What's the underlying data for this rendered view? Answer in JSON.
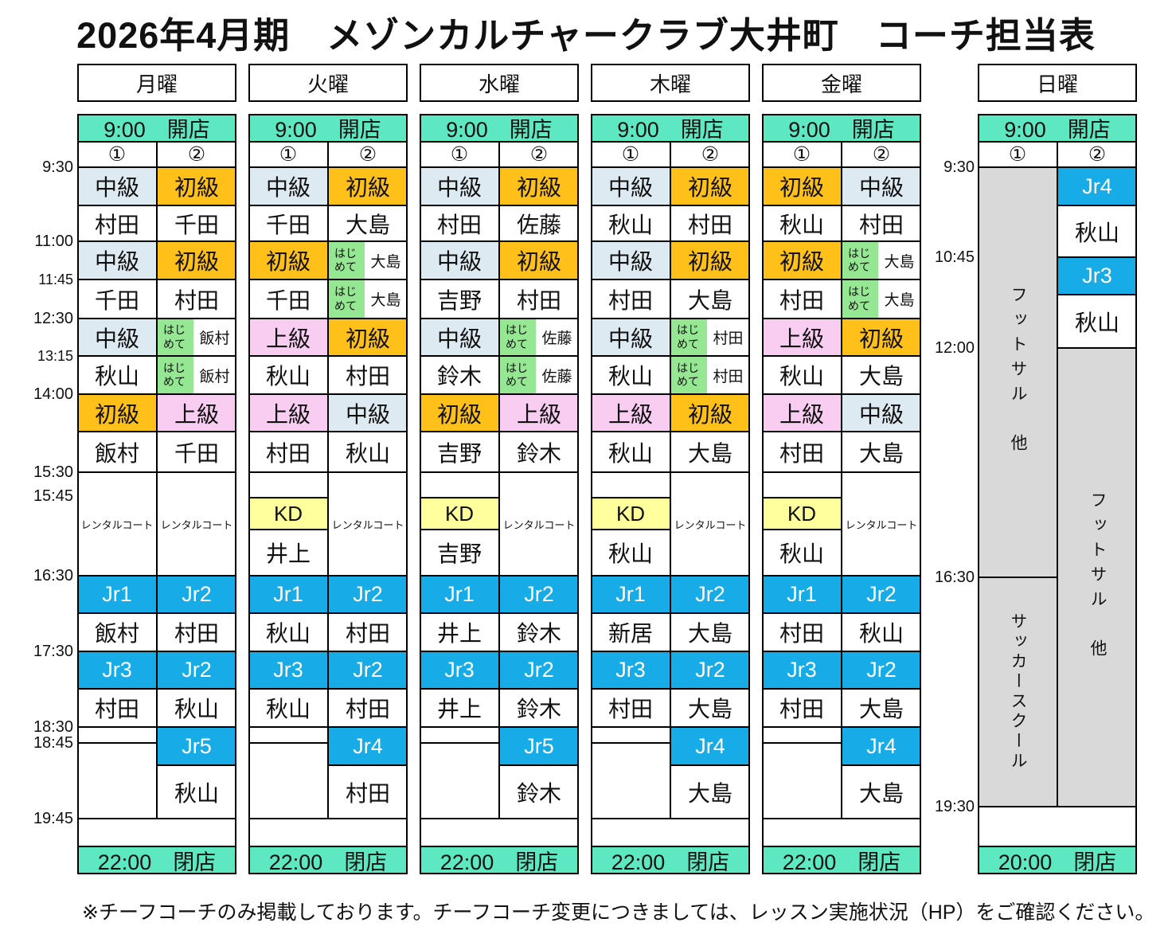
{
  "title": "2026年4月期　メゾンカルチャークラブ大井町　コーチ担当表",
  "footer_note": "※チーフコーチのみ掲載しております。チーフコーチ変更につきましては、レッスン実施状況（HP）をご確認ください。",
  "court_labels": [
    "①",
    "②"
  ],
  "kd_label": "KD",
  "rental_label": "レンタルコート",
  "hajimete_label": "はじめて",
  "left_times": [
    "9:30",
    "11:00",
    "11:45",
    "12:30",
    "13:15",
    "14:00",
    "15:30",
    "15:45",
    "16:30",
    "17:30",
    "18:30",
    "18:45",
    "19:45"
  ],
  "right_times": [
    "9:30",
    "10:45",
    "12:00",
    "16:30",
    "19:30"
  ],
  "colors": {
    "open_close": "#5EE8C2",
    "beginner": "#FFC019",
    "intermediate": "#DEEAF1",
    "advanced": "#F8CDF1",
    "first_time": "#95E793",
    "kd": "#FFFF9C",
    "junior": "#17ACE8",
    "sunday_gray": "#D9D9D9"
  },
  "level_color_keys": {
    "初級": "beginner",
    "中級": "intermediate",
    "上級": "advanced"
  },
  "days": [
    {
      "name": "月曜",
      "open": "9:00　開店",
      "close": "22:00　閉店",
      "cols": [
        {
          "lessons": [
            {
              "level": "中級",
              "coach": "村田"
            },
            {
              "level": "中級",
              "coach": "千田"
            },
            {
              "level": "中級",
              "coach": "秋山"
            },
            {
              "level": "初級",
              "coach": "飯村"
            }
          ],
          "mid": {
            "type": "rental"
          },
          "jr": [
            {
              "level": "Jr1",
              "coach": "飯村"
            },
            {
              "level": "Jr3",
              "coach": "村田"
            }
          ],
          "late": {
            "type": "empty"
          }
        },
        {
          "lessons": [
            {
              "level": "初級",
              "coach": "千田"
            },
            {
              "level": "初級",
              "coach": "村田"
            },
            {
              "type": "hajimete_pair",
              "coach1": "飯村",
              "coach2": "飯村"
            },
            {
              "level": "上級",
              "coach": "千田"
            }
          ],
          "mid": {
            "type": "rental"
          },
          "jr": [
            {
              "level": "Jr2",
              "coach": "村田"
            },
            {
              "level": "Jr2",
              "coach": "秋山"
            }
          ],
          "late": {
            "type": "jr",
            "level": "Jr5",
            "coach": "秋山"
          }
        }
      ]
    },
    {
      "name": "火曜",
      "open": "9:00　開店",
      "close": "22:00　閉店",
      "cols": [
        {
          "lessons": [
            {
              "level": "中級",
              "coach": "千田"
            },
            {
              "level": "初級",
              "coach": "千田"
            },
            {
              "level": "上級",
              "coach": "秋山"
            },
            {
              "level": "上級",
              "coach": "村田"
            }
          ],
          "mid": {
            "type": "kd",
            "coach": "井上"
          },
          "jr": [
            {
              "level": "Jr1",
              "coach": "秋山"
            },
            {
              "level": "Jr3",
              "coach": "秋山"
            }
          ],
          "late": {
            "type": "empty"
          }
        },
        {
          "lessons": [
            {
              "level": "初級",
              "coach": "大島"
            },
            {
              "type": "hajimete_pair",
              "coach1": "大島",
              "coach2": "大島"
            },
            {
              "level": "初級",
              "coach": "村田"
            },
            {
              "level": "中級",
              "coach": "秋山"
            }
          ],
          "mid": {
            "type": "rental"
          },
          "jr": [
            {
              "level": "Jr2",
              "coach": "村田"
            },
            {
              "level": "Jr2",
              "coach": "村田"
            }
          ],
          "late": {
            "type": "jr",
            "level": "Jr4",
            "coach": "村田"
          }
        }
      ]
    },
    {
      "name": "水曜",
      "open": "9:00　開店",
      "close": "22:00　閉店",
      "cols": [
        {
          "lessons": [
            {
              "level": "中級",
              "coach": "村田"
            },
            {
              "level": "中級",
              "coach": "吉野"
            },
            {
              "level": "中級",
              "coach": "鈴木"
            },
            {
              "level": "初級",
              "coach": "吉野"
            }
          ],
          "mid": {
            "type": "kd",
            "coach": "吉野"
          },
          "jr": [
            {
              "level": "Jr1",
              "coach": "井上"
            },
            {
              "level": "Jr3",
              "coach": "井上"
            }
          ],
          "late": {
            "type": "empty"
          }
        },
        {
          "lessons": [
            {
              "level": "初級",
              "coach": "佐藤"
            },
            {
              "level": "初級",
              "coach": "村田"
            },
            {
              "type": "hajimete_pair",
              "coach1": "佐藤",
              "coach2": "佐藤"
            },
            {
              "level": "上級",
              "coach": "鈴木"
            }
          ],
          "mid": {
            "type": "rental"
          },
          "jr": [
            {
              "level": "Jr2",
              "coach": "鈴木"
            },
            {
              "level": "Jr2",
              "coach": "鈴木"
            }
          ],
          "late": {
            "type": "jr",
            "level": "Jr5",
            "coach": "鈴木"
          }
        }
      ]
    },
    {
      "name": "木曜",
      "open": "9:00　開店",
      "close": "22:00　閉店",
      "cols": [
        {
          "lessons": [
            {
              "level": "中級",
              "coach": "秋山"
            },
            {
              "level": "中級",
              "coach": "村田"
            },
            {
              "level": "中級",
              "coach": "秋山"
            },
            {
              "level": "上級",
              "coach": "秋山"
            }
          ],
          "mid": {
            "type": "kd",
            "coach": "秋山"
          },
          "jr": [
            {
              "level": "Jr1",
              "coach": "新居"
            },
            {
              "level": "Jr3",
              "coach": "村田"
            }
          ],
          "late": {
            "type": "empty"
          }
        },
        {
          "lessons": [
            {
              "level": "初級",
              "coach": "村田"
            },
            {
              "level": "初級",
              "coach": "大島"
            },
            {
              "type": "hajimete_pair",
              "coach1": "村田",
              "coach2": "村田"
            },
            {
              "level": "初級",
              "coach": "大島"
            }
          ],
          "mid": {
            "type": "rental"
          },
          "jr": [
            {
              "level": "Jr2",
              "coach": "大島"
            },
            {
              "level": "Jr2",
              "coach": "大島"
            }
          ],
          "late": {
            "type": "jr",
            "level": "Jr4",
            "coach": "大島"
          }
        }
      ]
    },
    {
      "name": "金曜",
      "open": "9:00　開店",
      "close": "22:00　閉店",
      "cols": [
        {
          "lessons": [
            {
              "level": "初級",
              "coach": "秋山"
            },
            {
              "level": "初級",
              "coach": "村田"
            },
            {
              "level": "上級",
              "coach": "秋山"
            },
            {
              "level": "上級",
              "coach": "村田"
            }
          ],
          "mid": {
            "type": "kd",
            "coach": "秋山"
          },
          "jr": [
            {
              "level": "Jr1",
              "coach": "村田"
            },
            {
              "level": "Jr3",
              "coach": "村田"
            }
          ],
          "late": {
            "type": "empty"
          }
        },
        {
          "lessons": [
            {
              "level": "中級",
              "coach": "村田"
            },
            {
              "type": "hajimete_pair",
              "coach1": "大島",
              "coach2": "大島"
            },
            {
              "level": "初級",
              "coach": "大島"
            },
            {
              "level": "中級",
              "coach": "大島"
            }
          ],
          "mid": {
            "type": "rental"
          },
          "jr": [
            {
              "level": "Jr2",
              "coach": "秋山"
            },
            {
              "level": "Jr2",
              "coach": "大島"
            }
          ],
          "late": {
            "type": "jr",
            "level": "Jr4",
            "coach": "大島"
          }
        }
      ]
    }
  ],
  "sunday": {
    "name": "日曜",
    "open": "9:00　開店",
    "close": "20:00　閉店",
    "col1_blocks": [
      {
        "label": "フットサル　他"
      },
      {
        "label": "サッカースクール"
      }
    ],
    "col2_jr": [
      {
        "level": "Jr4",
        "coach": "秋山"
      },
      {
        "level": "Jr3",
        "coach": "秋山"
      }
    ],
    "col2_gray_label": "フットサル　他"
  }
}
